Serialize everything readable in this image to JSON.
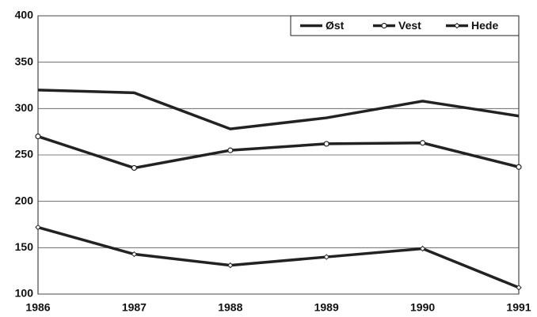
{
  "chart_data": {
    "type": "line",
    "categories": [
      "1986",
      "1987",
      "1988",
      "1989",
      "1990",
      "1991"
    ],
    "series": [
      {
        "name": "Øst",
        "color": "#222222",
        "marker": "none",
        "values": [
          320,
          317,
          278,
          290,
          308,
          292
        ]
      },
      {
        "name": "Vest",
        "color": "#222222",
        "marker": "circle",
        "values": [
          270,
          236,
          255,
          262,
          263,
          237
        ]
      },
      {
        "name": "Hede",
        "color": "#222222",
        "marker": "diamond",
        "values": [
          172,
          143,
          131,
          140,
          149,
          107
        ]
      }
    ],
    "ylim": [
      100,
      400
    ],
    "yticks": [
      100,
      150,
      200,
      250,
      300,
      350,
      400
    ],
    "grid": true,
    "legend": "upper right"
  }
}
